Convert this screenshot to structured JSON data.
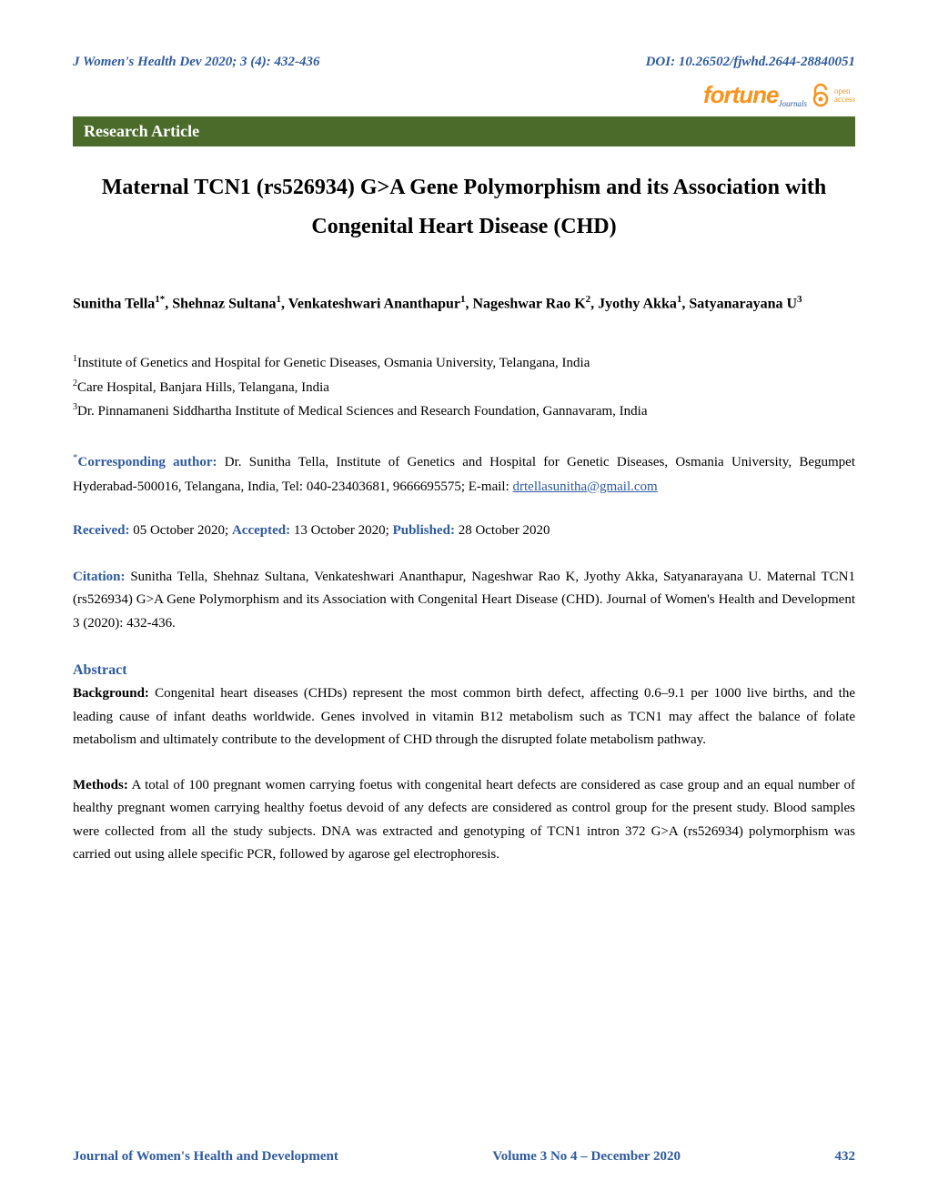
{
  "header": {
    "journal_ref": "J Women's Health Dev 2020; 3 (4): 432-436",
    "doi": "DOI: 10.26502/fjwhd.2644-28840051",
    "logo_main": "fortune",
    "logo_sub": "Journals",
    "oa_line1": "open",
    "oa_line2": "access"
  },
  "article_type": "Research Article",
  "title": "Maternal TCN1 (rs526934) G>A Gene Polymorphism and its Association with Congenital Heart Disease (CHD)",
  "authors_html": "Sunitha Tella<sup>1*</sup>, Shehnaz Sultana<sup>1</sup>, Venkateshwari Ananthapur<sup>1</sup>, Nageshwar Rao K<sup>2</sup>, Jyothy Akka<sup>1</sup>, Satyanarayana U<sup>3</sup>",
  "affiliations": [
    {
      "sup": "1",
      "text": "Institute of Genetics and Hospital for Genetic Diseases, Osmania University, Telangana, India"
    },
    {
      "sup": "2",
      "text": "Care Hospital, Banjara Hills, Telangana, India"
    },
    {
      "sup": "3",
      "text": "Dr. Pinnamaneni Siddhartha Institute of Medical Sciences and Research Foundation, Gannavaram, India"
    }
  ],
  "corresponding": {
    "label": "Corresponding author:",
    "text": " Dr. Sunitha Tella, Institute of Genetics and Hospital for Genetic Diseases, Osmania University, Begumpet Hyderabad-500016, Telangana, India, Tel: 040-23403681, 9666695575; E-mail: ",
    "email": "drtellasunitha@gmail.com"
  },
  "dates": {
    "received_label": "Received:",
    "received": " 05 October 2020; ",
    "accepted_label": "Accepted:",
    "accepted": " 13 October 2020; ",
    "published_label": "Published:",
    "published": " 28 October 2020"
  },
  "citation": {
    "label": "Citation:",
    "text": " Sunitha Tella, Shehnaz Sultana, Venkateshwari Ananthapur, Nageshwar Rao K, Jyothy Akka, Satyanarayana U. Maternal TCN1 (rs526934) G>A Gene Polymorphism and its Association with Congenital Heart Disease (CHD). Journal of Women's Health and Development 3 (2020): 432-436."
  },
  "abstract": {
    "label": "Abstract",
    "background_label": "Background:",
    "background": " Congenital heart diseases (CHDs) represent the most common birth defect, affecting 0.6–9.1 per 1000 live births, and the leading cause of infant deaths worldwide. Genes involved in vitamin B12 metabolism such as TCN1 may affect the balance of folate metabolism and ultimately contribute to the development of CHD through the disrupted folate metabolism pathway.",
    "methods_label": "Methods:",
    "methods": " A total of 100 pregnant women carrying foetus with congenital heart defects are considered as case group and an equal number of healthy pregnant women carrying healthy foetus devoid of any defects are considered as control group for the present study. Blood samples were collected from all the study subjects. DNA was extracted and genotyping of TCN1 intron 372 G>A (rs526934) polymorphism was carried out using allele specific PCR, followed by agarose gel electrophoresis."
  },
  "footer": {
    "journal": "Journal of Women's Health and Development",
    "volume": "Volume 3 No 4 – December 2020",
    "page": "432"
  },
  "colors": {
    "accent_blue": "#2e5a9e",
    "bar_green": "#4a6b2a",
    "logo_orange": "#f7941e",
    "background": "#ffffff"
  }
}
